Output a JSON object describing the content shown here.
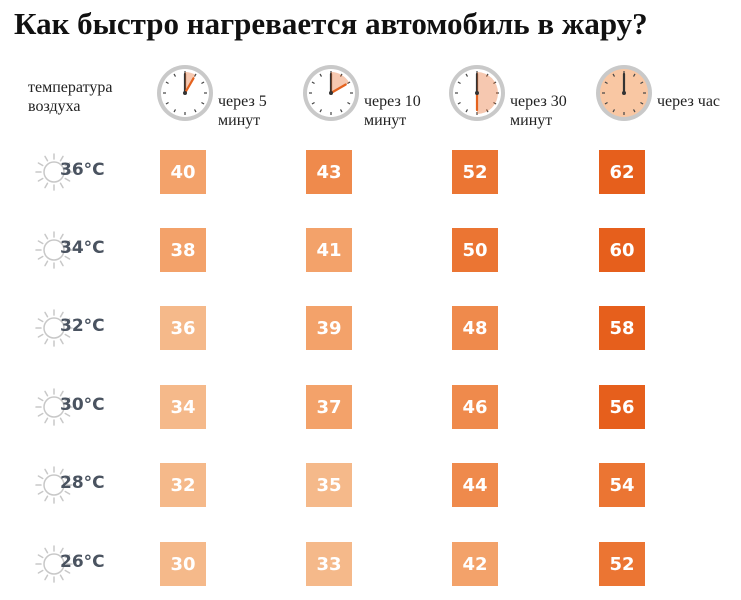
{
  "title": "Как быстро нагревается автомобиль в жару?",
  "row_header": "температура воздуха",
  "unit": "°C",
  "colors": {
    "scale": [
      "#f5b98a",
      "#f3a26a",
      "#ef8a4c",
      "#eb7533",
      "#e65f1c"
    ],
    "clock_bg": "#ffffff",
    "clock_bg_last": "#f9c7a3",
    "clock_hand": "#e4621e"
  },
  "chart_data": {
    "type": "table",
    "title": "Как быстро нагревается автомобиль в жару?",
    "row_header": "температура воздуха",
    "columns": [
      "через 5 минут",
      "через 10 минут",
      "через 30 минут",
      "через час"
    ],
    "column_minutes": [
      5,
      10,
      30,
      60
    ],
    "rows": [
      "36°C",
      "34°C",
      "32°C",
      "30°C",
      "28°C",
      "26°C"
    ],
    "air_temperatures": [
      36,
      34,
      32,
      30,
      28,
      26
    ],
    "values": [
      [
        40,
        43,
        52,
        62
      ],
      [
        38,
        41,
        50,
        60
      ],
      [
        36,
        39,
        48,
        58
      ],
      [
        34,
        37,
        46,
        56
      ],
      [
        32,
        35,
        44,
        54
      ],
      [
        30,
        33,
        42,
        52
      ]
    ]
  }
}
